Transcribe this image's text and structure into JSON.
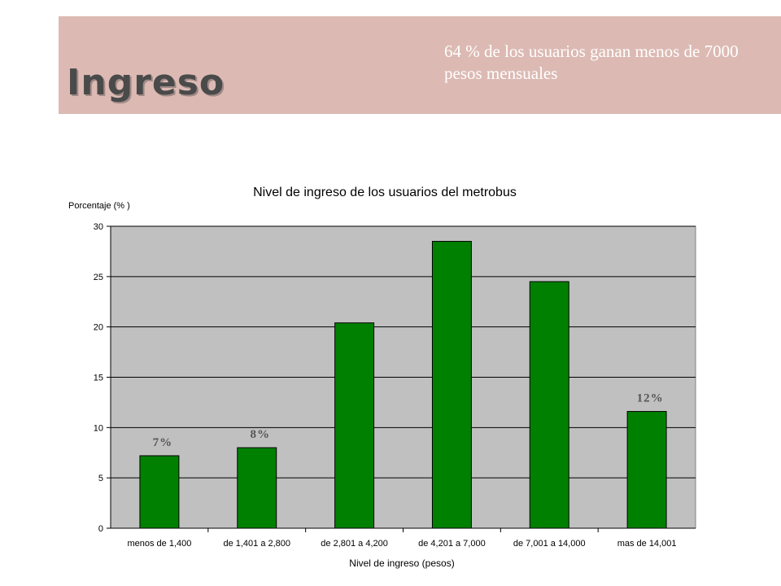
{
  "slide": {
    "title": "Ingreso",
    "note": "64 % de los usuarios ganan menos de 7000 pesos mensuales",
    "colors": {
      "header_band": "#dcbab3",
      "bar": "#008000",
      "plot_bg": "#c0c0c0"
    }
  },
  "chart_data": {
    "type": "bar",
    "title": "Nivel de ingreso de los usuarios del metrobus",
    "xlabel": "Nivel de ingreso (pesos)",
    "ylabel": "Porcentaje (% )",
    "categories": [
      "menos de 1,400",
      "de 1,401 a 2,800",
      "de 2,801 a 4,200",
      "de 4,201 a 7,000",
      "de 7,001 a 14,000",
      "mas de 14,001"
    ],
    "values": [
      7.2,
      8.0,
      20.4,
      28.5,
      24.5,
      11.6
    ],
    "data_labels": [
      "7%",
      "8%",
      "",
      "",
      "",
      "12%"
    ],
    "ylim": [
      0,
      30
    ],
    "yticks": [
      "0",
      "5",
      "10",
      "15",
      "20",
      "25",
      "30"
    ],
    "grid": true,
    "legend": "none"
  }
}
